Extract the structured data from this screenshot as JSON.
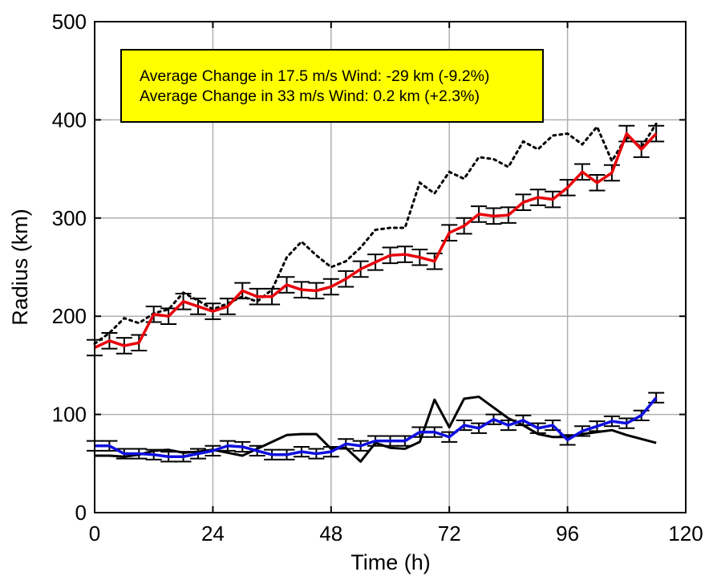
{
  "chart_data": {
    "type": "line",
    "xlabel": "Time (h)",
    "ylabel": "Radius (km)",
    "xlim": [
      0,
      120
    ],
    "ylim": [
      0,
      500
    ],
    "xticks": [
      0,
      24,
      48,
      72,
      96,
      120
    ],
    "yticks": [
      0,
      100,
      200,
      300,
      400,
      500
    ],
    "grid": true,
    "annotation": {
      "line1": "Average Change in 17.5 m/s Wind: -29 km (-9.2%)",
      "line2": "Average Change in 33 m/s Wind: 0.2 km (+2.3%)",
      "background": "#ffff00"
    },
    "x": [
      0,
      3,
      6,
      9,
      12,
      15,
      18,
      21,
      24,
      27,
      30,
      33,
      36,
      39,
      42,
      45,
      48,
      51,
      54,
      57,
      60,
      63,
      66,
      69,
      72,
      75,
      78,
      81,
      84,
      87,
      90,
      93,
      96,
      99,
      102,
      105,
      108,
      111,
      114
    ],
    "series": [
      {
        "style": "dotted",
        "color": "#000000",
        "values": [
          172,
          183,
          198,
          193,
          203,
          207,
          224,
          216,
          207,
          213,
          220,
          215,
          227,
          260,
          276,
          262,
          250,
          256,
          270,
          288,
          290,
          290,
          336,
          325,
          347,
          340,
          362,
          360,
          352,
          378,
          370,
          384,
          386,
          375,
          393,
          358,
          383,
          372,
          396
        ]
      },
      {
        "style": "solid-errorbars",
        "color": "#e8000b",
        "values": [
          168,
          175,
          170,
          173,
          202,
          200,
          215,
          210,
          205,
          210,
          226,
          220,
          220,
          232,
          227,
          226,
          230,
          238,
          248,
          255,
          262,
          263,
          260,
          256,
          285,
          292,
          304,
          302,
          303,
          316,
          321,
          319,
          331,
          347,
          336,
          346,
          386,
          370,
          386
        ],
        "error": 8
      },
      {
        "style": "solid",
        "color": "#000000",
        "values": [
          58,
          58,
          57,
          59,
          63,
          64,
          61,
          62,
          64,
          61,
          58,
          65,
          72,
          79,
          80,
          80,
          65,
          66,
          52,
          71,
          66,
          65,
          72,
          115,
          87,
          116,
          118,
          107,
          96,
          89,
          80,
          77,
          77,
          80,
          82,
          84,
          79,
          75,
          71
        ]
      },
      {
        "style": "solid-errorbars",
        "color": "#1010e0",
        "values": [
          68,
          68,
          60,
          60,
          59,
          57,
          57,
          60,
          63,
          68,
          67,
          63,
          59,
          59,
          62,
          60,
          62,
          70,
          68,
          73,
          73,
          73,
          82,
          82,
          77,
          89,
          86,
          95,
          89,
          94,
          86,
          89,
          74,
          83,
          88,
          93,
          91,
          99,
          117
        ],
        "error": 5
      }
    ]
  }
}
